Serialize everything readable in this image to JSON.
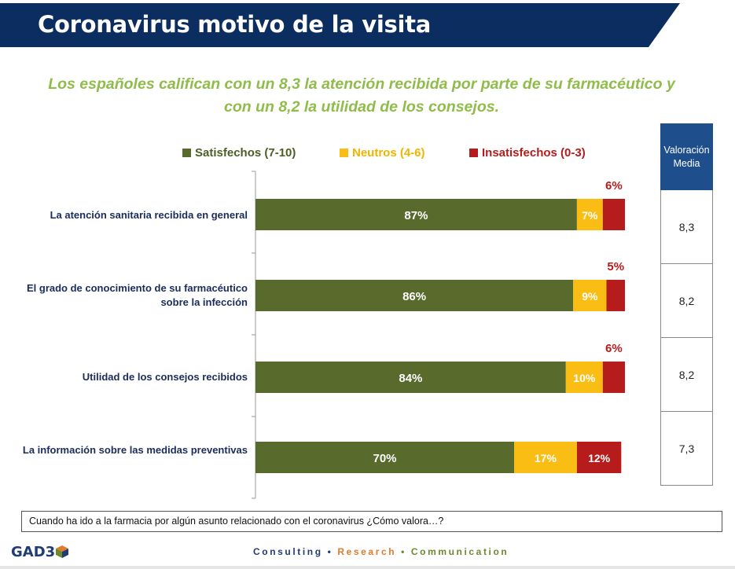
{
  "header": {
    "title": "Coronavirus motivo de la visita"
  },
  "subtitle": "Los españoles califican con un 8,3 la atención recibida por parte de su farmacéutico y con un 8,2 la utilidad de los consejos.",
  "legend": [
    {
      "label": "Satisfechos (7-10)",
      "color": "#596b2c"
    },
    {
      "label": "Neutros (4-6)",
      "color": "#f9bd14"
    },
    {
      "label": "Insatisfechos (0-3)",
      "color": "#b71c1c"
    }
  ],
  "chart_data": {
    "type": "bar",
    "stacked": true,
    "orientation": "horizontal",
    "categories": [
      "La atención sanitaria recibida en general",
      "El grado de conocimiento de su farmacéutico sobre la infección",
      "Utilidad de los consejos recibidos",
      "La información sobre las medidas preventivas"
    ],
    "series": [
      {
        "name": "Satisfechos (7-10)",
        "color": "#596b2c",
        "values": [
          87,
          86,
          84,
          70
        ],
        "labels": [
          "87%",
          "86%",
          "84%",
          "70%"
        ]
      },
      {
        "name": "Neutros (4-6)",
        "color": "#f9bd14",
        "values": [
          7,
          9,
          10,
          17
        ],
        "labels": [
          "7%",
          "9%",
          "10%",
          "17%"
        ]
      },
      {
        "name": "Insatisfechos (0-3)",
        "color": "#b71c1c",
        "values": [
          6,
          5,
          6,
          12
        ],
        "labels": [
          "6%",
          "5%",
          "6%",
          "12%"
        ]
      }
    ],
    "xlim": [
      0,
      100
    ]
  },
  "table": {
    "header": "Valoración Media",
    "values": [
      "8,3",
      "8,2",
      "8,2",
      "7,3"
    ]
  },
  "question": "Cuando ha ido a la farmacia por algún asunto relacionado con el coronavirus ¿Cómo valora…?",
  "logo": "GAD3",
  "footer": {
    "consulting": "Consulting",
    "research": "Research",
    "communication": "Communication",
    "separator": "•",
    "colors": {
      "consulting": "#1f3b78",
      "research": "#e07b2c",
      "communication": "#6c8a2c"
    }
  }
}
